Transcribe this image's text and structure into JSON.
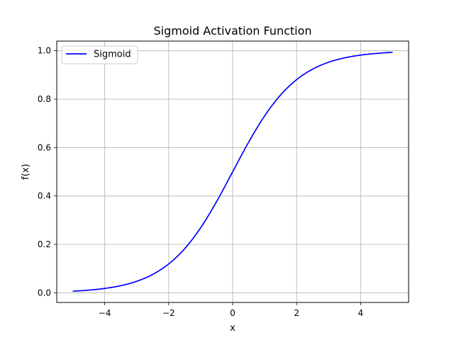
{
  "chart_data": {
    "type": "line",
    "title": "Sigmoid Activation Function",
    "xlabel": "x",
    "ylabel": "f(x)",
    "xlim": [
      -5.5,
      5.5
    ],
    "ylim": [
      -0.04,
      1.04
    ],
    "x_ticks": [
      -4,
      -2,
      0,
      2,
      4
    ],
    "x_tick_labels": [
      "−4",
      "−2",
      "0",
      "2",
      "4"
    ],
    "y_ticks": [
      0.0,
      0.2,
      0.4,
      0.6,
      0.8,
      1.0
    ],
    "y_tick_labels": [
      "0.0",
      "0.2",
      "0.4",
      "0.6",
      "0.8",
      "1.0"
    ],
    "grid": true,
    "legend_position": "top-left",
    "series": [
      {
        "name": "Sigmoid",
        "color": "#0000ff",
        "x": [
          -5,
          -4.5,
          -4,
          -3.5,
          -3,
          -2.5,
          -2,
          -1.5,
          -1,
          -0.5,
          0,
          0.5,
          1,
          1.5,
          2,
          2.5,
          3,
          3.5,
          4,
          4.5,
          5
        ],
        "y": [
          0.0067,
          0.011,
          0.018,
          0.0293,
          0.0474,
          0.0759,
          0.1192,
          0.1824,
          0.2689,
          0.3775,
          0.5,
          0.6225,
          0.7311,
          0.8176,
          0.8808,
          0.9241,
          0.9526,
          0.9707,
          0.982,
          0.989,
          0.9933
        ]
      }
    ]
  }
}
